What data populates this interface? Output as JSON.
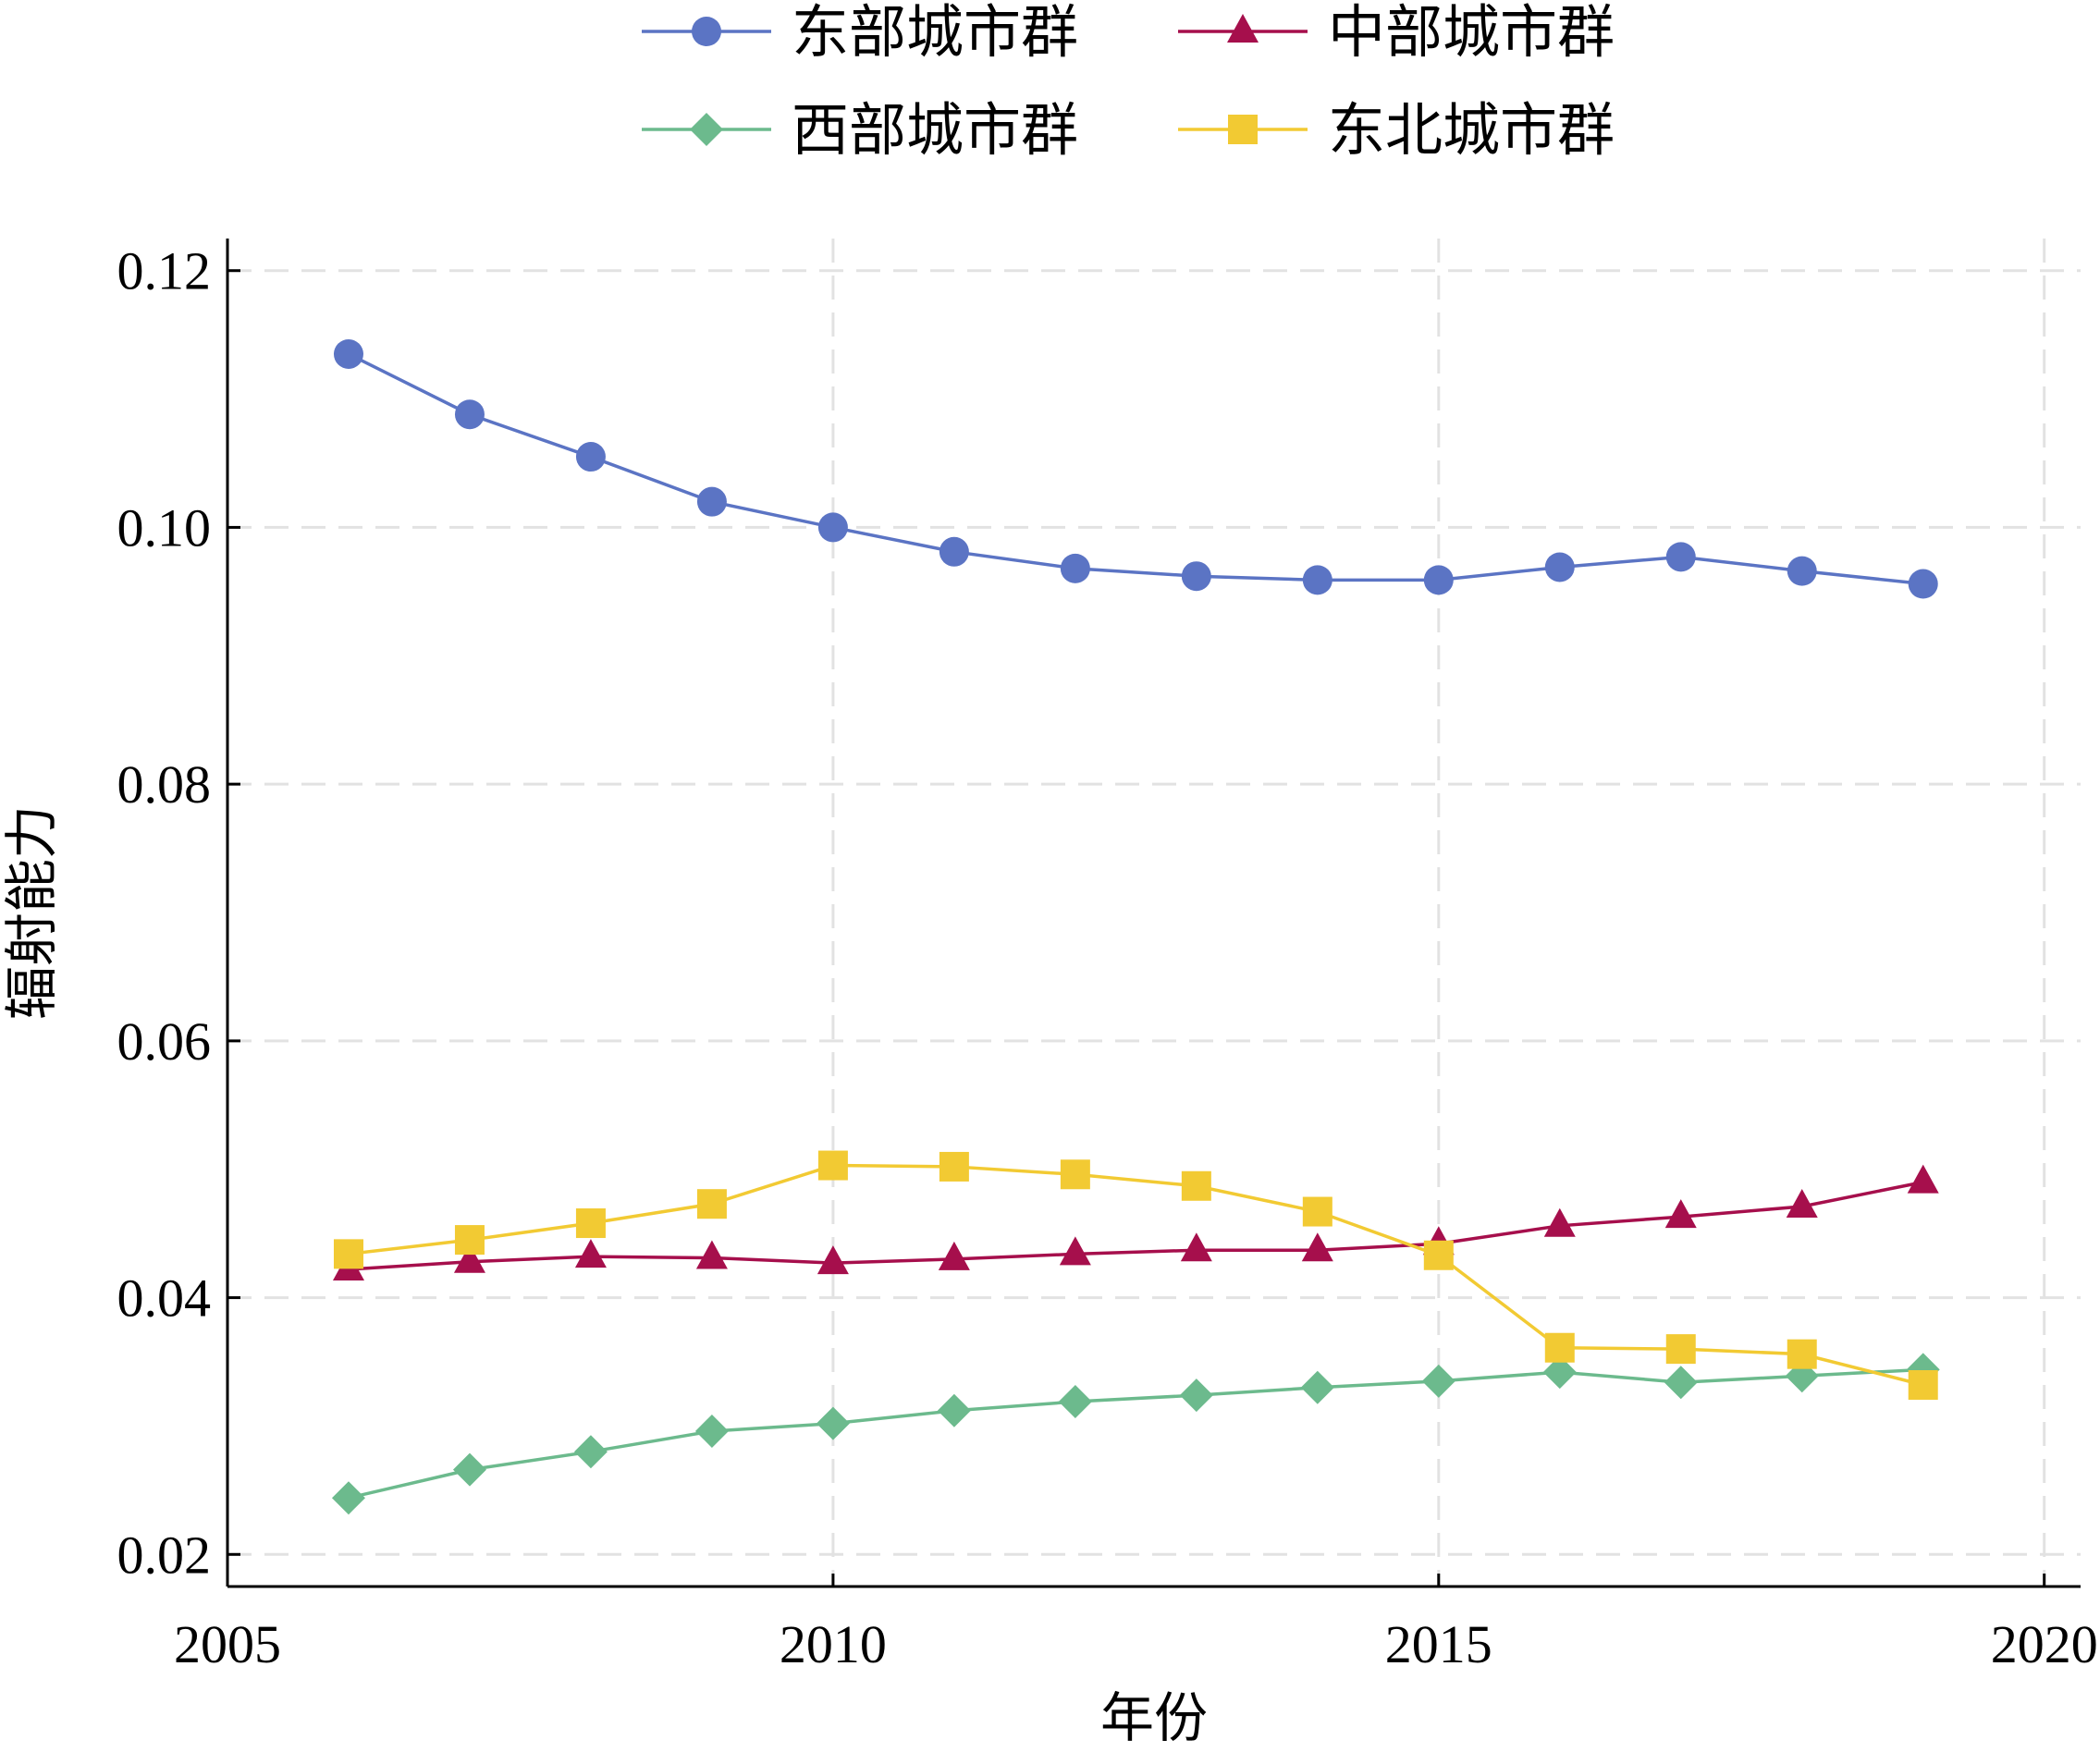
{
  "chart_data": {
    "type": "line",
    "title": "",
    "xlabel": "年份",
    "ylabel": "辐射能力",
    "xlim": [
      2005,
      2020.3
    ],
    "ylim": [
      0.0175,
      0.1225
    ],
    "xticks": [
      2005,
      2010,
      2015,
      2020
    ],
    "yticks": [
      0.02,
      0.04,
      0.06,
      0.08,
      0.1,
      0.12
    ],
    "ytick_labels": [
      "0.02",
      "0.04",
      "0.06",
      "0.08",
      "0.10",
      "0.12"
    ],
    "grid": true,
    "legend_position": "top",
    "x": [
      2006,
      2007,
      2008,
      2009,
      2010,
      2011,
      2012,
      2013,
      2014,
      2015,
      2016,
      2017,
      2018,
      2019
    ],
    "series": [
      {
        "name": "东部城市群",
        "marker": "circle",
        "color": "#5b74c4",
        "values": [
          0.1135,
          0.1088,
          0.1055,
          0.102,
          0.1,
          0.0981,
          0.0968,
          0.0962,
          0.0959,
          0.0959,
          0.0969,
          0.0977,
          0.0966,
          0.0956
        ]
      },
      {
        "name": "中部城市群",
        "marker": "triangle",
        "color": "#a60f4c",
        "values": [
          0.0422,
          0.0428,
          0.0432,
          0.0431,
          0.0427,
          0.043,
          0.0434,
          0.0437,
          0.0437,
          0.0442,
          0.0456,
          0.0463,
          0.0471,
          0.049
        ]
      },
      {
        "name": "西部城市群",
        "marker": "diamond",
        "color": "#6cba8d",
        "values": [
          0.0244,
          0.0266,
          0.028,
          0.0296,
          0.0302,
          0.0312,
          0.0319,
          0.0324,
          0.033,
          0.0335,
          0.0342,
          0.0334,
          0.0339,
          0.0344
        ]
      },
      {
        "name": "东北城市群",
        "marker": "square",
        "color": "#f2ca33",
        "values": [
          0.0434,
          0.0445,
          0.0458,
          0.0473,
          0.0503,
          0.0502,
          0.0496,
          0.0487,
          0.0467,
          0.0433,
          0.0361,
          0.036,
          0.0356,
          0.0332
        ]
      }
    ]
  }
}
